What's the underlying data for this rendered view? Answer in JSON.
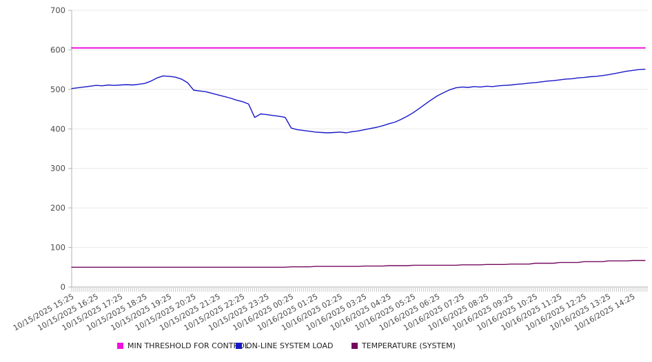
{
  "chart_data": {
    "type": "line",
    "title": "",
    "n_points": 95,
    "points_interval_minutes": 15,
    "x_axis": {
      "minor_tick_minutes": 5,
      "tick_labels": [
        "10/15/2025 15:25",
        "10/15/2025 16:25",
        "10/15/2025 17:25",
        "10/15/2025 18:25",
        "10/15/2025 19:25",
        "10/15/2025 20:25",
        "10/15/2025 21:25",
        "10/15/2025 22:25",
        "10/15/2025 23:25",
        "10/16/2025 00:25",
        "10/16/2025 01:25",
        "10/16/2025 02:25",
        "10/16/2025 03:25",
        "10/16/2025 04:25",
        "10/16/2025 05:25",
        "10/16/2025 06:25",
        "10/16/2025 07:25",
        "10/16/2025 08:25",
        "10/16/2025 09:25",
        "10/16/2025 10:25",
        "10/16/2025 11:25",
        "10/16/2025 12:25",
        "10/16/2025 13:25",
        "10/16/2025 14:25"
      ]
    },
    "y_axis": {
      "min": 0,
      "max": 700,
      "step": 100,
      "ticks": [
        0,
        100,
        200,
        300,
        400,
        500,
        600,
        700
      ]
    },
    "series": [
      {
        "name": "MIN THRESHOLD FOR CONTROL",
        "color": "#ef10dd",
        "width": 2,
        "constant_value": 605
      },
      {
        "name": "ON-LINE SYSTEM LOAD",
        "color": "#1717c8",
        "width": 1.4,
        "values": [
          502,
          504,
          506,
          508,
          510,
          509,
          511,
          510,
          511,
          512,
          511,
          513,
          515,
          521,
          529,
          534,
          533,
          531,
          526,
          517,
          498,
          496,
          494,
          490,
          486,
          482,
          478,
          473,
          469,
          463,
          429,
          438,
          436,
          434,
          432,
          429,
          402,
          398,
          396,
          394,
          392,
          391,
          390,
          391,
          392,
          390,
          393,
          395,
          398,
          401,
          404,
          408,
          413,
          417,
          424,
          432,
          441,
          452,
          463,
          474,
          484,
          492,
          499,
          504,
          506,
          505,
          507,
          506,
          508,
          507,
          509,
          510,
          511,
          513,
          514,
          516,
          517,
          519,
          521,
          522,
          524,
          526,
          527,
          529,
          530,
          532,
          533,
          535,
          537,
          540,
          543,
          546,
          548,
          550,
          551
        ]
      },
      {
        "name": "TEMPERATURE (SYSTEM)",
        "color": "#73095f",
        "width": 1.4,
        "values": [
          50,
          50,
          50,
          50,
          50,
          50,
          50,
          50,
          50,
          50,
          50,
          50,
          50,
          50,
          50,
          50,
          50,
          50,
          50,
          50,
          50,
          50,
          50,
          50,
          50,
          50,
          50,
          50,
          50,
          50,
          50,
          50,
          50,
          50,
          50,
          50,
          51,
          51,
          51,
          51,
          52,
          52,
          52,
          52,
          52,
          52,
          52,
          52,
          53,
          53,
          53,
          53,
          54,
          54,
          54,
          54,
          55,
          55,
          55,
          55,
          55,
          55,
          55,
          55,
          56,
          56,
          56,
          56,
          57,
          57,
          57,
          57,
          58,
          58,
          58,
          58,
          60,
          60,
          60,
          60,
          62,
          62,
          62,
          62,
          64,
          64,
          64,
          64,
          66,
          66,
          66,
          66,
          67,
          67,
          67
        ]
      }
    ],
    "legend_position": "bottom",
    "style": {
      "grid_color": "#e8e8e8",
      "axis_color": "#b0b0b0",
      "minor_tick_color": "#c8c8c8",
      "axis_label_color": "#4a4a4a",
      "legend_text_color": "#222222",
      "background": "#ffffff"
    }
  }
}
